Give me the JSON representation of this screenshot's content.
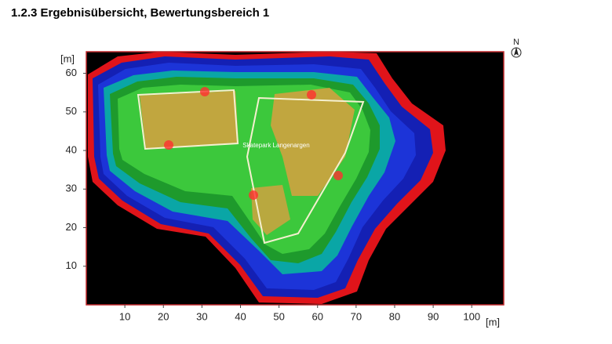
{
  "heading": "1.2.3  Ergebnisübersicht, Bewertungsbereich 1",
  "chart_data": {
    "type": "map",
    "x_label": "[m]",
    "y_label": "[m]",
    "north_label": "N",
    "annotations": [
      "Skatepark Langenargen"
    ],
    "xlim": [
      0,
      108.3
    ],
    "ylim": [
      0,
      65.6
    ],
    "xticks": [
      10,
      20,
      30,
      40,
      50,
      60,
      70,
      80,
      90,
      100
    ],
    "yticks": [
      10,
      20,
      30,
      40,
      50,
      60
    ]
  }
}
